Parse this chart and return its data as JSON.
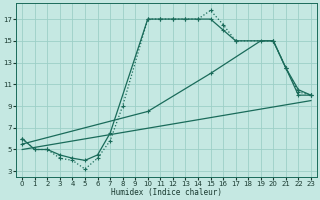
{
  "xlabel": "Humidex (Indice chaleur)",
  "xlim": [
    -0.5,
    23.5
  ],
  "ylim": [
    2.5,
    18.5
  ],
  "xticks": [
    0,
    1,
    2,
    3,
    4,
    5,
    6,
    7,
    8,
    9,
    10,
    11,
    12,
    13,
    14,
    15,
    16,
    17,
    18,
    19,
    20,
    21,
    22,
    23
  ],
  "yticks": [
    3,
    5,
    7,
    9,
    11,
    13,
    15,
    17
  ],
  "bg_color": "#c5e8e2",
  "grid_color": "#9dcfc7",
  "line_color": "#1a6b5a",
  "figsize": [
    3.2,
    2.0
  ],
  "dpi": 100,
  "line1_x": [
    0,
    1,
    2,
    3,
    4,
    5,
    6,
    7,
    8,
    10,
    11,
    12,
    13,
    14,
    15,
    16,
    17,
    20,
    21,
    22,
    23
  ],
  "line1_y": [
    6.0,
    5.0,
    5.0,
    4.2,
    4.0,
    3.2,
    4.2,
    5.8,
    9.0,
    17.0,
    17.0,
    17.0,
    17.0,
    17.0,
    17.8,
    16.5,
    15.0,
    15.0,
    12.5,
    10.3,
    10.0
  ],
  "line2_x": [
    0,
    1,
    2,
    3,
    4,
    5,
    6,
    7,
    10,
    11,
    12,
    13,
    14,
    15,
    16,
    17,
    20,
    21,
    22,
    23
  ],
  "line2_y": [
    6.0,
    5.0,
    5.0,
    4.5,
    4.2,
    4.0,
    4.5,
    6.5,
    17.0,
    17.0,
    17.0,
    17.0,
    17.0,
    17.0,
    16.0,
    15.0,
    15.0,
    12.5,
    10.0,
    10.0
  ],
  "line3_x": [
    0,
    10,
    15,
    19,
    20,
    21,
    22,
    23
  ],
  "line3_y": [
    5.5,
    8.5,
    12.0,
    15.0,
    15.0,
    12.5,
    10.5,
    10.0
  ],
  "line4_x": [
    0,
    23
  ],
  "line4_y": [
    5.0,
    9.5
  ]
}
